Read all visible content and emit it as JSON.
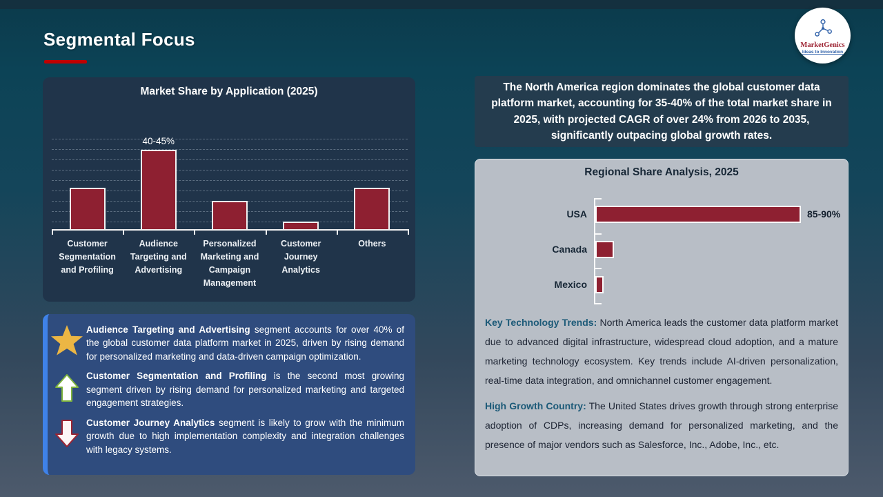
{
  "header": {
    "title": "Segmental Focus"
  },
  "logo": {
    "brand": "MarketGenics",
    "tagline": "Ideas to Innovation"
  },
  "highlight": {
    "text": "The North America region dominates the global customer data platform market, accounting for 35-40% of the total market share in 2025, with projected CAGR of over 24% from 2026 to 2035, significantly outpacing global growth rates."
  },
  "chart_data": [
    {
      "id": "market-share-by-application",
      "type": "bar",
      "title": "Market Share by Application (2025)",
      "categories": [
        "Customer Segmentation and Profiling",
        "Audience Targeting and Advertising",
        "Personalized Marketing and Campaign Management",
        "Customer Journey Analytics",
        "Others"
      ],
      "values": [
        22,
        42.5,
        15,
        4,
        22
      ],
      "unit": "%",
      "data_labels": [
        "",
        "40-45%",
        "",
        "",
        ""
      ],
      "ylim": [
        0,
        48
      ],
      "grid": "dashed-horizontal",
      "legend": "none",
      "bar_color": "#8E2031"
    },
    {
      "id": "regional-share-analysis",
      "type": "bar-horizontal",
      "title": "Regional Share Analysis, 2025",
      "categories": [
        "USA",
        "Canada",
        "Mexico"
      ],
      "values": [
        87.5,
        8,
        3.5
      ],
      "unit": "%",
      "data_labels": [
        "85-90%",
        "",
        ""
      ],
      "xlim": [
        0,
        100
      ],
      "grid": "off",
      "legend": "none",
      "bar_color": "#8E2031"
    }
  ],
  "insights": {
    "items": [
      {
        "icon": "star-icon",
        "lead": "Audience Targeting and Advertising",
        "text": " segment accounts for over 40% of the global customer data platform market in 2025, driven by rising demand for personalized marketing and data-driven campaign optimization."
      },
      {
        "icon": "up-arrow-icon",
        "lead": "Customer Segmentation and Profiling",
        "text": " is the second most growing segment driven by rising demand for personalized marketing and targeted engagement strategies."
      },
      {
        "icon": "down-arrow-icon",
        "lead": "Customer Journey Analytics",
        "text": " segment is likely to grow with the minimum growth due to high implementation complexity and integration challenges with legacy systems."
      }
    ]
  },
  "regional": {
    "title": "Regional Share Analysis, 2025",
    "paragraphs": [
      {
        "lead": "Key Technology Trends:",
        "text": " North America leads the customer data platform market due to advanced digital infrastructure, widespread cloud adoption, and a mature marketing technology ecosystem. Key trends include AI-driven personalization, real-time data integration, and omnichannel customer engagement."
      },
      {
        "lead": "High Growth Country:",
        "text": " The United States drives growth through strong enterprise adoption of CDPs, increasing demand for personalized marketing, and the presence of major vendors such as Salesforce, Inc., Adobe, Inc., etc."
      }
    ]
  },
  "colors": {
    "accent_red": "#C00000",
    "bar_maroon": "#8E2031",
    "lead_teal": "#1C5A78",
    "panel_navy": "#20344A",
    "insight_blue": "#2F4C7E",
    "insight_border_blue": "#3F82E8",
    "regional_panel_gray": "#B8BEC6",
    "highlight_navy": "#243C4E"
  }
}
